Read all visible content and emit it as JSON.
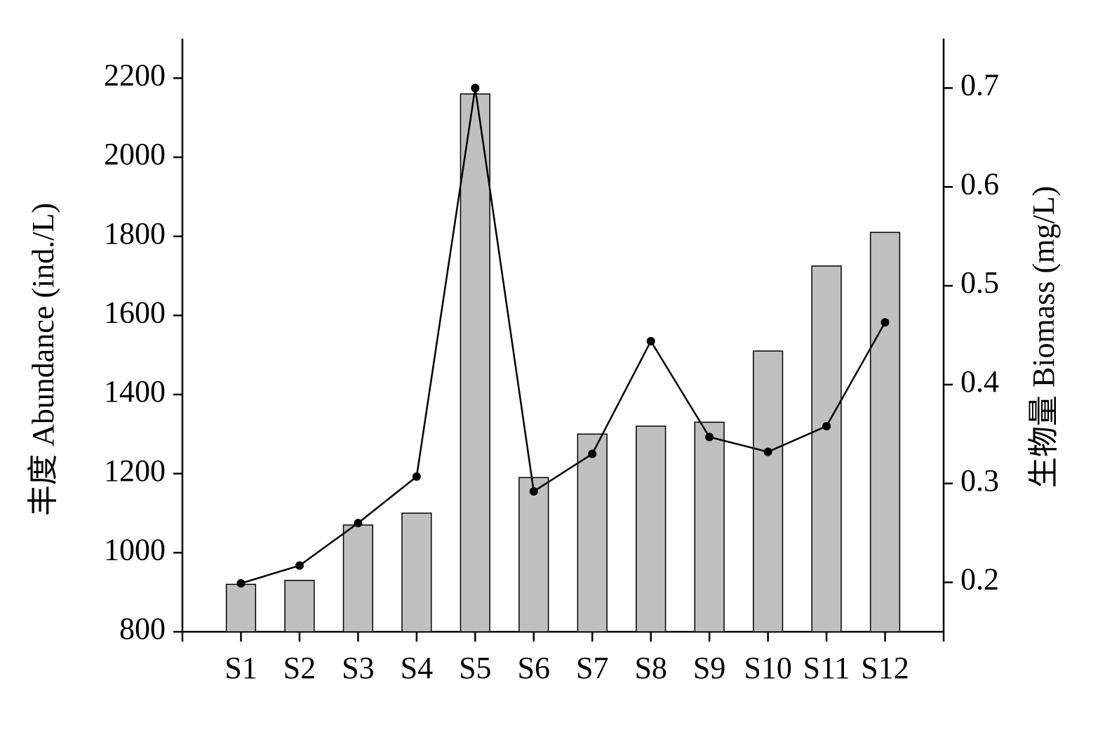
{
  "chart_data": {
    "type": "combo",
    "categories": [
      "S1",
      "S2",
      "S3",
      "S4",
      "S5",
      "S6",
      "S7",
      "S8",
      "S9",
      "S10",
      "S11",
      "S12"
    ],
    "series": [
      {
        "type": "bar",
        "color": "#c0c0c0",
        "values": [
          920,
          930,
          1070,
          1100,
          2160,
          1190,
          1300,
          1320,
          1330,
          1510,
          1725,
          1810
        ]
      },
      {
        "type": "line",
        "axis": "y2",
        "color": "#000000",
        "values": [
          0.199,
          0.217,
          0.26,
          0.307,
          0.7,
          0.292,
          0.33,
          0.444,
          0.347,
          0.332,
          0.358,
          0.463
        ]
      }
    ],
    "ylabel": "丰度 Abundance (ind./L)",
    "y2label": "生物量 Biomass (mg/L)",
    "ylim": [
      800,
      2300
    ],
    "yticks": [
      800,
      1000,
      1200,
      1400,
      1600,
      1800,
      2000,
      2200
    ],
    "y2lim": [
      0.15,
      0.75
    ],
    "y2ticks": [
      0.2,
      0.3,
      0.4,
      0.5,
      0.6,
      0.7
    ],
    "grid": false
  }
}
